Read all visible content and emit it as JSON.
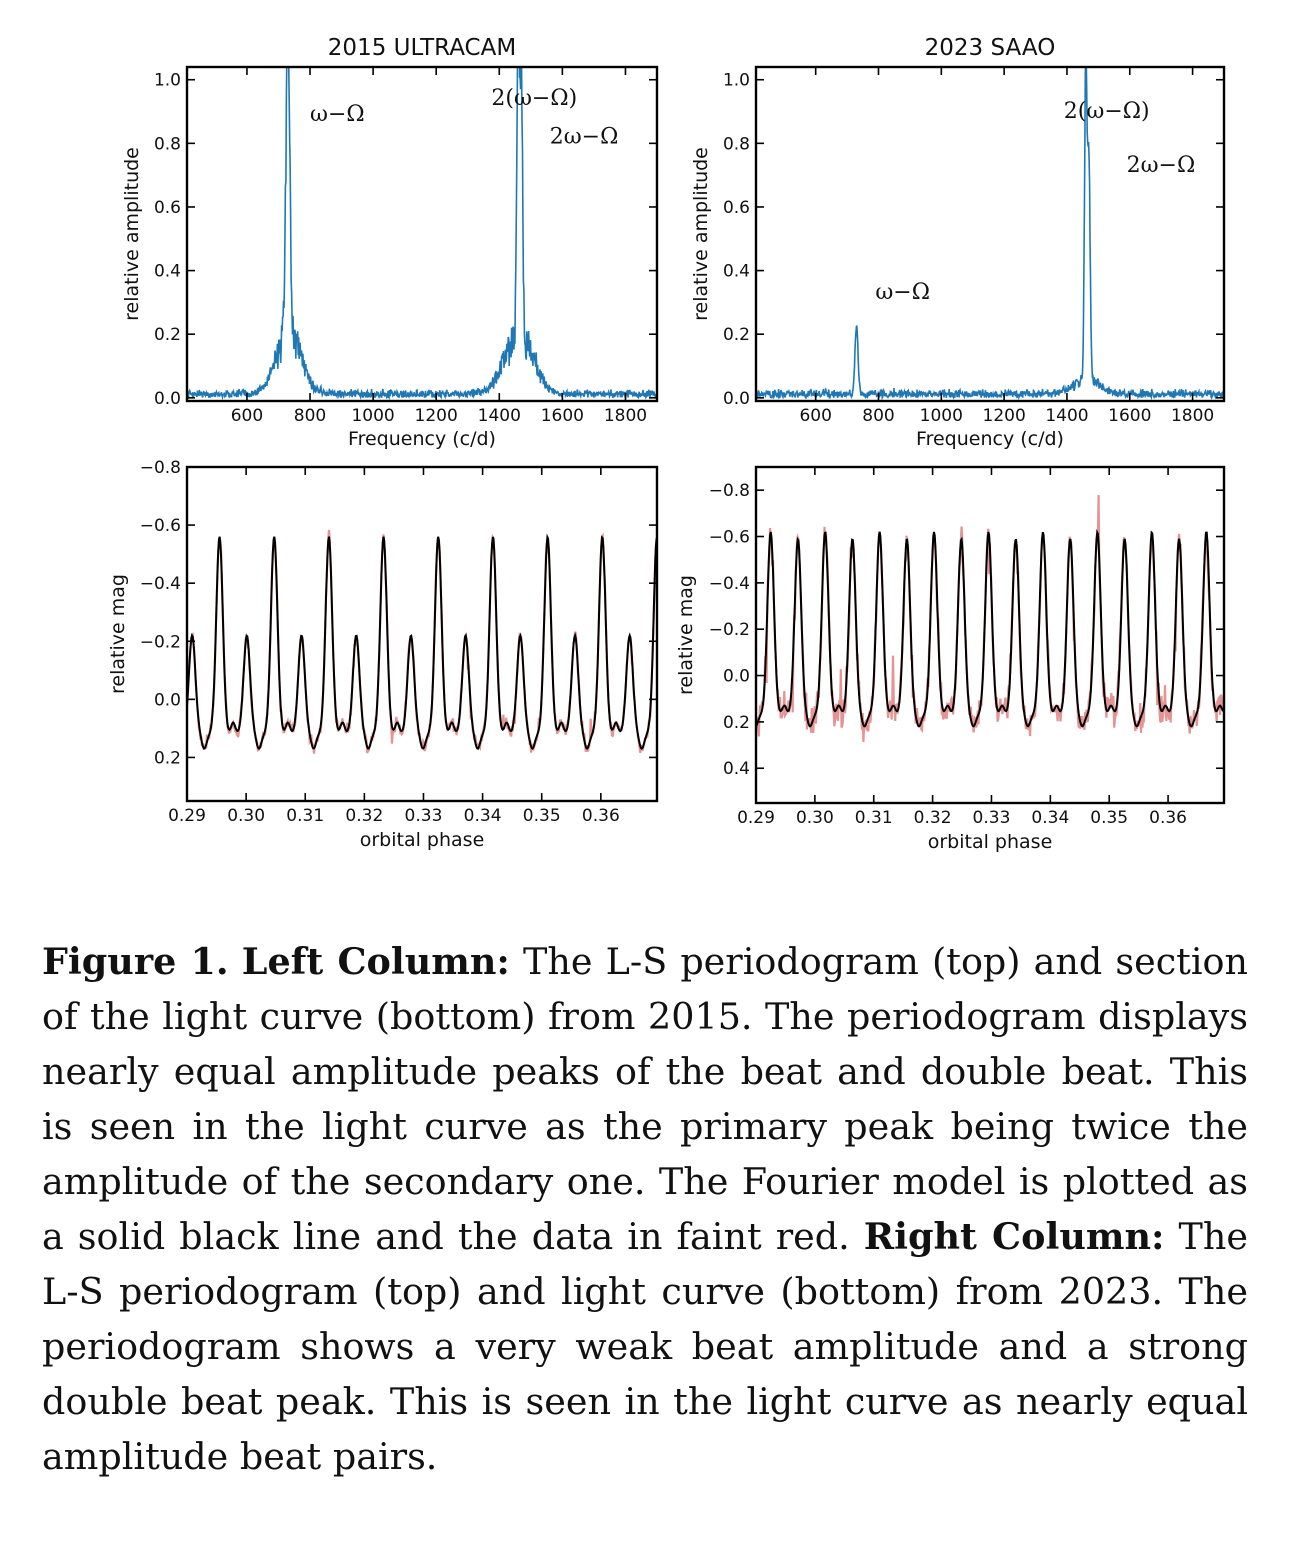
{
  "chart_data": [
    {
      "type": "line",
      "title": "2015 ULTRACAM",
      "xlabel": "Frequency (c/d)",
      "ylabel": "relative amplitude",
      "xlim": [
        410,
        1900
      ],
      "ylim": [
        -0.01,
        1.04
      ],
      "xticks": [
        "600",
        "800",
        "1000",
        "1200",
        "1400",
        "1600",
        "1800"
      ],
      "yticks": [
        "0.0",
        "0.2",
        "0.4",
        "0.6",
        "0.8",
        "1.0"
      ],
      "series": [
        {
          "color": "#1f77b4",
          "peaks": [
            {
              "x": 730,
              "y": 0.98,
              "width": 6
            },
            {
              "x": 733,
              "y": 0.25,
              "width": 40
            },
            {
              "x": 1460,
              "y": 1.0,
              "width": 4
            },
            {
              "x": 1470,
              "y": 0.8,
              "width": 4
            },
            {
              "x": 1463,
              "y": 0.25,
              "width": 45
            }
          ],
          "noise_level": 0.02
        }
      ],
      "annotations": [
        {
          "text": "ω−Ω",
          "x": 800,
          "y": 0.87
        },
        {
          "text": "2(ω−Ω)",
          "x": 1375,
          "y": 0.92
        },
        {
          "text": "2ω−Ω",
          "x": 1560,
          "y": 0.8
        }
      ]
    },
    {
      "type": "line",
      "title": "2023 SAAO",
      "xlabel": "Frequency (c/d)",
      "ylabel": "relative amplitude",
      "xlim": [
        410,
        1900
      ],
      "ylim": [
        -0.01,
        1.04
      ],
      "xticks": [
        "600",
        "800",
        "1000",
        "1200",
        "1400",
        "1600",
        "1800"
      ],
      "yticks": [
        "0.0",
        "0.2",
        "0.4",
        "0.6",
        "0.8",
        "1.0"
      ],
      "series": [
        {
          "color": "#1f77b4",
          "peaks": [
            {
              "x": 730,
              "y": 0.21,
              "width": 5
            },
            {
              "x": 1460,
              "y": 1.0,
              "width": 4
            },
            {
              "x": 1470,
              "y": 0.68,
              "width": 4
            },
            {
              "x": 1463,
              "y": 0.06,
              "width": 40
            }
          ],
          "noise_level": 0.02
        }
      ],
      "annotations": [
        {
          "text": "ω−Ω",
          "x": 790,
          "y": 0.31
        },
        {
          "text": "2(ω−Ω)",
          "x": 1390,
          "y": 0.88
        },
        {
          "text": "2ω−Ω",
          "x": 1590,
          "y": 0.71
        }
      ]
    },
    {
      "type": "line",
      "xlabel": "orbital phase",
      "ylabel": "relative mag",
      "xlim": [
        0.29,
        0.3695
      ],
      "ylim": [
        -0.8,
        0.35
      ],
      "y_inverted": true,
      "xticks": [
        "0.29",
        "0.30",
        "0.31",
        "0.32",
        "0.33",
        "0.34",
        "0.35",
        "0.36"
      ],
      "yticks": [
        "−0.8",
        "−0.6",
        "−0.4",
        "−0.2",
        "0.0",
        "0.2"
      ],
      "series": [
        {
          "name": "",
          "color": "#000000",
          "kind": "fourier_model",
          "first_peak_phase": 0.2955,
          "beat_phase_period": 0.00925,
          "primary_mag": -0.56,
          "secondary_mag": -0.22,
          "base_mag": 0.12
        },
        {
          "name": "",
          "color": "#e08080",
          "kind": "data",
          "noise_mag": 0.03
        }
      ]
    },
    {
      "type": "line",
      "xlabel": "orbital phase",
      "ylabel": "relative mag",
      "xlim": [
        0.29,
        0.3695
      ],
      "ylim": [
        -0.9,
        0.55
      ],
      "y_inverted": true,
      "xticks": [
        "0.29",
        "0.30",
        "0.31",
        "0.32",
        "0.33",
        "0.34",
        "0.35",
        "0.36"
      ],
      "yticks": [
        "−0.8",
        "−0.6",
        "−0.4",
        "−0.2",
        "0.0",
        "0.2",
        "0.4"
      ],
      "series": [
        {
          "name": "",
          "color": "#000000",
          "kind": "fourier_model",
          "first_peak_phase": 0.2925,
          "beat_phase_period": 0.00925,
          "primary_mag": -0.62,
          "secondary_mag": -0.59,
          "base_mag": 0.17
        },
        {
          "name": "",
          "color": "#e08080",
          "kind": "data",
          "noise_mag": 0.09
        }
      ]
    }
  ],
  "caption": {
    "label": "Figure 1.",
    "left_heading": "Left Column:",
    "left_text": " The L-S periodogram (top) and section of the light curve (bottom) from 2015.  The periodogram displays nearly equal amplitude peaks of the beat and double beat.  This is seen in the light curve as the primary peak being twice the amplitude of the secondary one. The Fourier model is plotted as a solid black line and the data in faint red. ",
    "right_heading": "Right Column:",
    "right_text": " The L-S periodogram (top) and light curve (bottom) from 2023. The periodogram shows a very weak beat amplitude and a strong double beat peak.  This is seen in the light curve as nearly equal amplitude beat pairs."
  }
}
